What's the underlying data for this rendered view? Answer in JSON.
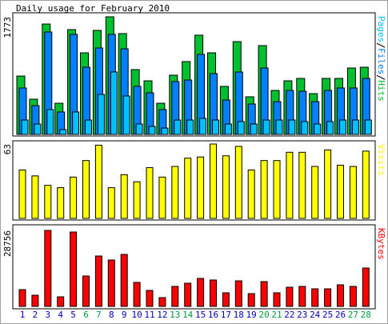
{
  "chart_data": [
    {
      "type": "bar",
      "title": "Daily usage for February 2010",
      "categories": [
        "1",
        "2",
        "3",
        "4",
        "5",
        "6",
        "7",
        "8",
        "9",
        "10",
        "11",
        "12",
        "13",
        "14",
        "15",
        "16",
        "17",
        "18",
        "19",
        "20",
        "21",
        "22",
        "23",
        "24",
        "25",
        "26",
        "27",
        "28"
      ],
      "category_colors": [
        "#0000c0",
        "#0000c0",
        "#0000c0",
        "#0000c0",
        "#0000c0",
        "#00a040",
        "#00a040",
        "#0000c0",
        "#0000c0",
        "#0000c0",
        "#0000c0",
        "#0000c0",
        "#00a040",
        "#00a040",
        "#0000c0",
        "#0000c0",
        "#0000c0",
        "#0000c0",
        "#0000c0",
        "#00a040",
        "#00a040",
        "#0000c0",
        "#0000c0",
        "#0000c0",
        "#0000c0",
        "#0000c0",
        "#00a040",
        "#00a040"
      ],
      "series": [
        {
          "name": "Hits",
          "color": "#00c030",
          "values": [
            880,
            531,
            1664,
            470,
            1580,
            1230,
            1568,
            1773,
            1520,
            977,
            808,
            470,
            893,
            1098,
            1496,
            1230,
            724,
            1399,
            567,
            1339,
            663,
            808,
            844,
            615,
            844,
            844,
            1001,
            1013
          ]
        },
        {
          "name": "Files",
          "color": "#0080ff",
          "values": [
            700,
            434,
            1544,
            338,
            1508,
            1013,
            1303,
            1508,
            1290,
            724,
            627,
            374,
            796,
            820,
            1206,
            917,
            519,
            941,
            458,
            1001,
            494,
            663,
            651,
            494,
            663,
            700,
            700,
            844
          ]
        },
        {
          "name": "Pages",
          "color": "#00c0ff",
          "values": [
            217,
            157,
            374,
            72,
            338,
            217,
            603,
            941,
            579,
            157,
            121,
            96,
            217,
            217,
            241,
            217,
            157,
            193,
            157,
            217,
            217,
            217,
            193,
            157,
            193,
            217,
            217,
            217
          ]
        }
      ],
      "ylim": [
        0,
        1773
      ],
      "yticks": [
        1773
      ]
    },
    {
      "type": "bar",
      "series": [
        {
          "name": "Visits",
          "color": "#ffff00",
          "values": [
            41,
            36,
            28,
            26,
            35,
            49,
            62,
            26,
            37,
            31,
            43,
            35,
            44,
            51,
            52,
            63,
            53,
            61,
            41,
            49,
            49,
            56,
            56,
            44,
            58,
            45,
            44,
            57
          ]
        }
      ],
      "ylim": [
        0,
        63
      ],
      "yticks": [
        63
      ]
    },
    {
      "type": "bar",
      "series": [
        {
          "name": "KBytes",
          "color": "#ff0000",
          "values": [
            6357,
            4238,
            28756,
            3632,
            28151,
            11502,
            19070,
            17556,
            19675,
            9081,
            6054,
            3330,
            7567,
            8778,
            10594,
            9989,
            5146,
            9686,
            4843,
            9384,
            5146,
            7265,
            7567,
            6659,
            6659,
            8173,
            7567,
            14529
          ]
        }
      ],
      "ylim": [
        0,
        28756
      ],
      "yticks": [
        28756
      ]
    }
  ]
}
